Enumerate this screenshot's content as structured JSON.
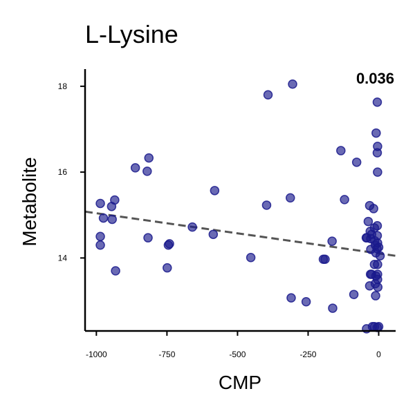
{
  "chart_data": {
    "type": "scatter",
    "title": "L-Lysine",
    "xlabel": "CMP",
    "ylabel": "Metabolite",
    "annotation": "0.036",
    "xlim": [
      -1040,
      60
    ],
    "ylim": [
      12.3,
      18.4
    ],
    "xticks": [
      -1000,
      -750,
      -500,
      -250,
      0
    ],
    "xtick_labels": [
      "-1000",
      "-750",
      "-500",
      "-250",
      "0"
    ],
    "yticks": [
      14,
      16,
      18
    ],
    "ytick_labels": [
      "14",
      "16",
      "18"
    ],
    "grid": false,
    "point_color": "#1a1a8c",
    "trend_color": "#555555",
    "trend_line": {
      "x": [
        -1040,
        60
      ],
      "y": [
        15.08,
        14.05
      ]
    },
    "points": [
      [
        -986,
        15.27
      ],
      [
        -986,
        14.5
      ],
      [
        -986,
        14.3
      ],
      [
        -975,
        14.93
      ],
      [
        -946,
        15.2
      ],
      [
        -944,
        14.9
      ],
      [
        -935,
        15.35
      ],
      [
        -932,
        13.7
      ],
      [
        -862,
        16.1
      ],
      [
        -820,
        16.02
      ],
      [
        -814,
        16.33
      ],
      [
        -817,
        14.47
      ],
      [
        -745,
        14.3
      ],
      [
        -741,
        14.33
      ],
      [
        -749,
        13.77
      ],
      [
        -660,
        14.72
      ],
      [
        -586,
        14.55
      ],
      [
        -581,
        15.57
      ],
      [
        -453,
        14.01
      ],
      [
        -397,
        15.23
      ],
      [
        -392,
        17.8
      ],
      [
        -305,
        18.05
      ],
      [
        -313,
        15.4
      ],
      [
        -310,
        13.07
      ],
      [
        -257,
        12.98
      ],
      [
        -196,
        13.97
      ],
      [
        -190,
        13.97
      ],
      [
        -165,
        14.39
      ],
      [
        -163,
        12.83
      ],
      [
        -134,
        16.5
      ],
      [
        -121,
        15.36
      ],
      [
        -88,
        13.15
      ],
      [
        -78,
        16.23
      ],
      [
        -44,
        14.47
      ],
      [
        -42,
        14.47
      ],
      [
        -43,
        12.35
      ],
      [
        -32,
        15.22
      ],
      [
        -37,
        14.85
      ],
      [
        -30,
        14.62
      ],
      [
        -28,
        14.45
      ],
      [
        -29,
        13.62
      ],
      [
        -32,
        13.35
      ],
      [
        -25,
        13.62
      ],
      [
        -22,
        12.4
      ],
      [
        -18,
        15.15
      ],
      [
        -15,
        14.7
      ],
      [
        -14,
        14.4
      ],
      [
        -12,
        14.3
      ],
      [
        -10,
        14.12
      ],
      [
        -15,
        13.85
      ],
      [
        -10,
        13.58
      ],
      [
        -12,
        13.4
      ],
      [
        -11,
        13.12
      ],
      [
        -15,
        12.4
      ],
      [
        -5,
        12.38
      ],
      [
        -5,
        17.63
      ],
      [
        -9,
        16.91
      ],
      [
        -4,
        16.6
      ],
      [
        -5,
        16.45
      ],
      [
        -4,
        16.0
      ],
      [
        -5,
        14.75
      ],
      [
        -5,
        14.52
      ],
      [
        -4,
        14.35
      ],
      [
        -6,
        14.22
      ],
      [
        0,
        14.25
      ],
      [
        5,
        14.05
      ],
      [
        -4,
        13.85
      ],
      [
        -4,
        13.62
      ],
      [
        -4,
        13.5
      ],
      [
        -3,
        13.32
      ],
      [
        0,
        12.4
      ],
      [
        -28,
        14.2
      ],
      [
        -25,
        14.55
      ]
    ]
  }
}
